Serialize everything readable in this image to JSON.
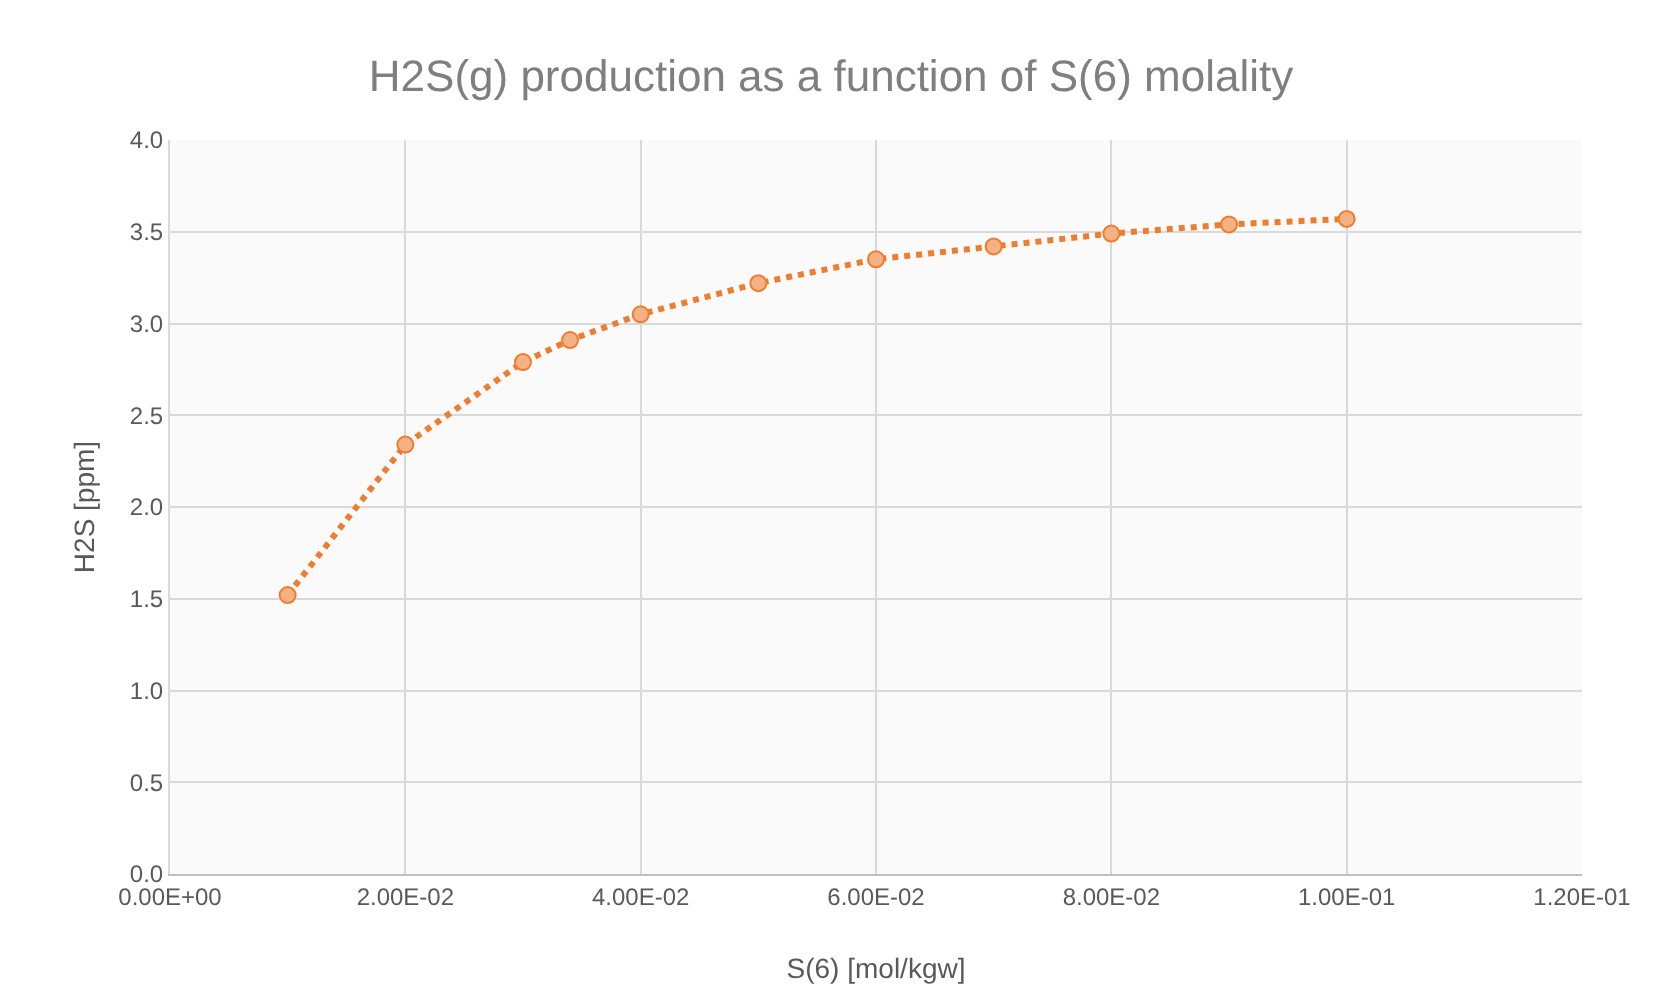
{
  "chart_data": {
    "type": "line",
    "title": "H2S(g) production as a function of S(6) molality",
    "xlabel": "S(6) [mol/kgw]",
    "ylabel": "H2S [ppm]",
    "x": [
      0.01,
      0.02,
      0.03,
      0.034,
      0.04,
      0.05,
      0.06,
      0.07,
      0.08,
      0.09,
      0.1
    ],
    "series": [
      {
        "color": "#ed7d31",
        "values": [
          1.52,
          2.34,
          2.79,
          2.91,
          3.05,
          3.22,
          3.35,
          3.42,
          3.49,
          3.54,
          3.57
        ]
      }
    ],
    "xlim": [
      0,
      0.12
    ],
    "xticks": [
      {
        "value": 0,
        "label": "0.00E+00"
      },
      {
        "value": 0.02,
        "label": "2.00E-02"
      },
      {
        "value": 0.04,
        "label": "4.00E-02"
      },
      {
        "value": 0.06,
        "label": "6.00E-02"
      },
      {
        "value": 0.08,
        "label": "8.00E-02"
      },
      {
        "value": 0.1,
        "label": "1.00E-01"
      },
      {
        "value": 0.12,
        "label": "1.20E-01"
      }
    ],
    "ylim": [
      0,
      4
    ],
    "yticks": [
      {
        "value": 0,
        "label": "0.0"
      },
      {
        "value": 0.5,
        "label": "0.5"
      },
      {
        "value": 1,
        "label": "1.0"
      },
      {
        "value": 1.5,
        "label": "1.5"
      },
      {
        "value": 2,
        "label": "2.0"
      },
      {
        "value": 2.5,
        "label": "2.5"
      },
      {
        "value": 3,
        "label": "3.0"
      },
      {
        "value": 3.5,
        "label": "3.5"
      },
      {
        "value": 4,
        "label": "4.0"
      }
    ],
    "grid": true,
    "legend": false,
    "marker": "circle",
    "line_style": "dotted"
  }
}
